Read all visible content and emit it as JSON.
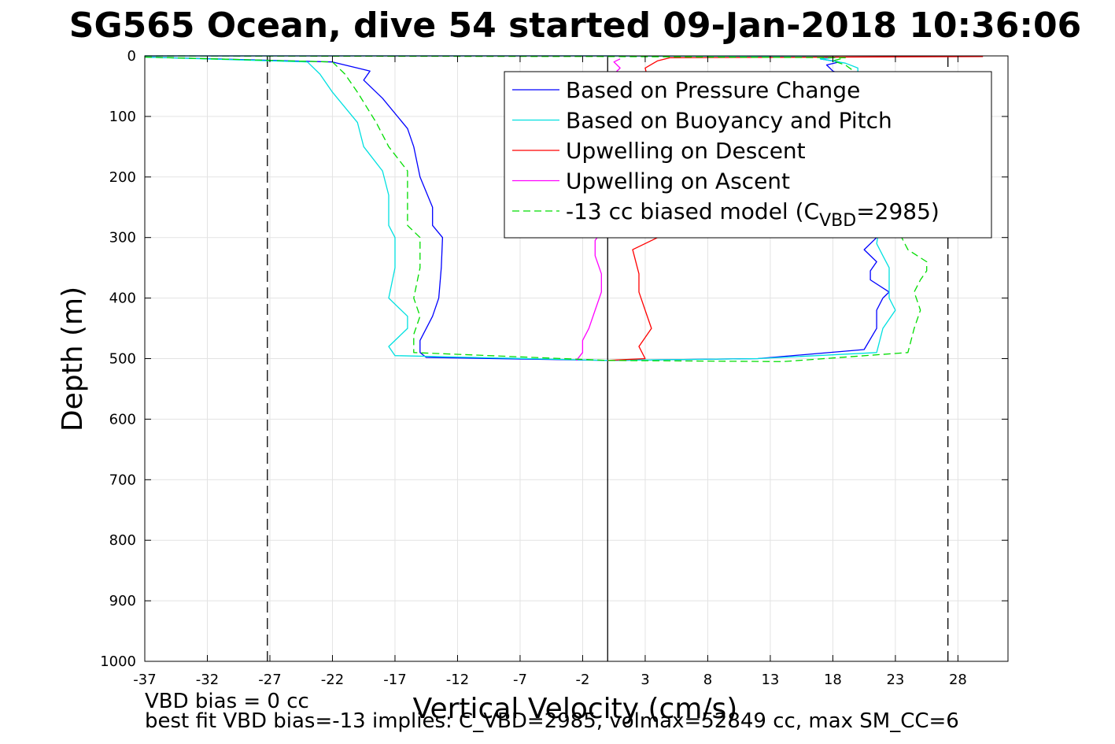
{
  "chart_data": {
    "type": "line",
    "title": "SG565 Ocean, dive 54 started 09-Jan-2018 10:36:06",
    "xlabel": "Vertical Velocity (cm/s)",
    "ylabel": "Depth (m)",
    "xlim": [
      -37,
      32
    ],
    "ylim": [
      0,
      1000
    ],
    "y_reversed": true,
    "xticks": [
      -37,
      -32,
      -27,
      -22,
      -17,
      -12,
      -7,
      -2,
      3,
      8,
      13,
      18,
      23,
      28
    ],
    "yticks": [
      0,
      100,
      200,
      300,
      400,
      500,
      600,
      700,
      800,
      900,
      1000
    ],
    "grid": true,
    "legend_position": "top-right",
    "reference_lines": [
      {
        "x": -27.2,
        "style": "dashed",
        "color": "#000000"
      },
      {
        "x": 27.2,
        "style": "dashed",
        "color": "#000000"
      },
      {
        "x": 0,
        "style": "solid",
        "color": "#000000"
      }
    ],
    "series": [
      {
        "name": "Based on Pressure Change",
        "color": "#0000ff",
        "style": "solid",
        "x": [
          -37,
          -22,
          -19,
          -19.5,
          -18,
          -16,
          -15.5,
          -15,
          -14,
          -14,
          -13.2,
          -13.3,
          -13.5,
          -14,
          -15,
          -15,
          -14.5,
          0,
          12,
          20.5,
          21.5,
          21.5,
          22,
          22.5,
          21,
          21,
          21.5,
          20.5,
          21.5,
          21.5,
          23,
          22,
          21,
          20,
          21,
          21,
          20,
          18,
          17.5,
          18.5,
          17,
          18,
          16,
          0,
          -37
        ],
        "y": [
          2,
          10,
          25,
          40,
          70,
          120,
          150,
          200,
          250,
          280,
          300,
          350,
          400,
          430,
          470,
          490,
          498,
          503,
          500,
          485,
          450,
          420,
          400,
          390,
          370,
          355,
          340,
          320,
          300,
          260,
          230,
          200,
          170,
          130,
          100,
          70,
          40,
          25,
          15,
          10,
          5,
          2,
          1,
          0,
          0
        ]
      },
      {
        "name": "Based on Buoyancy and Pitch",
        "color": "#00e0e0",
        "style": "solid",
        "x": [
          -37,
          -24,
          -23,
          -22,
          -20,
          -19.5,
          -18,
          -17.5,
          -17.5,
          -17,
          -17,
          -17.5,
          -16,
          -16,
          -17.5,
          -17,
          0,
          12,
          21.5,
          22,
          23,
          22.5,
          22.5,
          22.5,
          22,
          21.5,
          22,
          21.5,
          22.5,
          21,
          20,
          20,
          19,
          17,
          18.5,
          17,
          0,
          -37
        ],
        "y": [
          2,
          10,
          30,
          60,
          110,
          150,
          190,
          230,
          280,
          300,
          350,
          400,
          430,
          450,
          480,
          495,
          503,
          500,
          490,
          450,
          420,
          400,
          370,
          350,
          330,
          310,
          250,
          200,
          150,
          100,
          50,
          20,
          12,
          5,
          2,
          1,
          0,
          0
        ]
      },
      {
        "name": "Upwelling on Descent",
        "color": "#ff0000",
        "style": "solid",
        "x": [
          0,
          3,
          2.5,
          3.5,
          3,
          2.5,
          2.5,
          2,
          4,
          3,
          3,
          3.5,
          3,
          4,
          5,
          30
        ],
        "y": [
          503,
          500,
          480,
          450,
          420,
          390,
          360,
          320,
          300,
          250,
          150,
          60,
          20,
          8,
          3,
          1
        ]
      },
      {
        "name": "Upwelling on Ascent",
        "color": "#ff00ff",
        "style": "solid",
        "x": [
          -2.5,
          -2,
          -2,
          -1.5,
          -1,
          -0.5,
          -0.5,
          -1,
          -1,
          -0.5,
          0,
          0.5,
          1,
          0.5,
          1
        ],
        "y": [
          503,
          490,
          470,
          450,
          420,
          390,
          360,
          330,
          305,
          290,
          40,
          30,
          20,
          10,
          5
        ]
      },
      {
        "name": "-13 cc biased model (C_VBD=2985)",
        "color": "#00dd00",
        "style": "dashed",
        "x": [
          -37,
          -22,
          -21,
          -20,
          -18.5,
          -17.5,
          -16,
          -16,
          -16,
          -15,
          -15,
          -15.5,
          -15,
          -15.5,
          -15.5,
          0,
          14,
          24,
          24.5,
          25,
          24.5,
          25,
          25.5,
          25.5,
          24,
          23.5,
          23,
          23.5,
          23,
          22.5,
          21,
          20,
          19,
          18,
          19,
          0,
          -37
        ],
        "y": [
          2,
          10,
          30,
          60,
          110,
          150,
          190,
          230,
          280,
          300,
          350,
          400,
          430,
          460,
          490,
          503,
          505,
          490,
          450,
          420,
          390,
          370,
          355,
          340,
          320,
          300,
          250,
          200,
          150,
          100,
          60,
          30,
          15,
          8,
          3,
          1,
          0
        ]
      }
    ],
    "legend_entries": [
      {
        "label": "Based on Pressure Change",
        "color": "#0000ff",
        "style": "solid"
      },
      {
        "label": "Based on Buoyancy and Pitch",
        "color": "#00e0e0",
        "style": "solid"
      },
      {
        "label": "Upwelling on Descent",
        "color": "#ff0000",
        "style": "solid"
      },
      {
        "label": "Upwelling on Ascent",
        "color": "#ff00ff",
        "style": "solid"
      },
      {
        "label_prefix": "-13 cc biased model (C",
        "label_sub": "VBD",
        "label_suffix": "=2985)",
        "color": "#00dd00",
        "style": "dashed"
      }
    ]
  },
  "footnotes": {
    "line1": "VBD bias = 0 cc",
    "line2": "best fit VBD bias=-13 implies: C_VBD=2985, volmax=52849 cc, max SM_CC=6"
  }
}
